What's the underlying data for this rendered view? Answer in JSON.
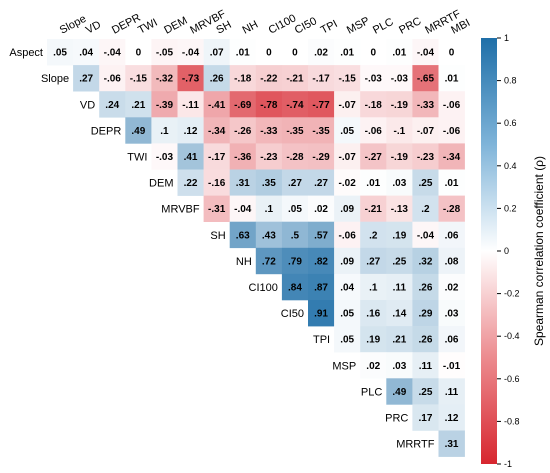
{
  "chart_data": {
    "type": "heatmap",
    "layout": "upper-triangle correlation matrix",
    "variables": [
      "Aspect",
      "Slope",
      "VD",
      "DEPR",
      "TWI",
      "DEM",
      "MRVBF",
      "SH",
      "NH",
      "CI100",
      "CI50",
      "TPI",
      "MSP",
      "PLC",
      "PRC",
      "MRRTF",
      "MBI"
    ],
    "row_labels": [
      "Aspect",
      "Slope",
      "VD",
      "DEPR",
      "TWI",
      "DEM",
      "MRVBF",
      "SH",
      "NH",
      "CI100",
      "CI50",
      "TPI",
      "MSP",
      "PLC",
      "PRC",
      "MRRTF"
    ],
    "column_labels": [
      "Slope",
      "VD",
      "DEPR",
      "TWI",
      "DEM",
      "MRVBF",
      "SH",
      "NH",
      "CI100",
      "CI50",
      "TPI",
      "MSP",
      "PLC",
      "PRC",
      "MRRTF",
      "MBI"
    ],
    "rows": [
      [
        0.05,
        0.04,
        -0.04,
        0,
        -0.05,
        -0.04,
        0.07,
        0.01,
        0,
        0,
        0.02,
        0.01,
        0,
        0.01,
        -0.04,
        0
      ],
      [
        0.27,
        -0.06,
        -0.15,
        -0.32,
        -0.73,
        0.26,
        -0.18,
        -0.22,
        -0.21,
        -0.17,
        -0.15,
        -0.03,
        -0.03,
        -0.65,
        0.01
      ],
      [
        0.24,
        0.21,
        -0.39,
        -0.11,
        -0.41,
        -0.69,
        -0.78,
        -0.74,
        -0.77,
        -0.07,
        -0.18,
        -0.19,
        -0.33,
        -0.06
      ],
      [
        0.49,
        0.1,
        0.12,
        -0.34,
        -0.26,
        -0.33,
        -0.35,
        -0.35,
        0.05,
        -0.06,
        -0.1,
        -0.07,
        -0.06
      ],
      [
        -0.03,
        0.41,
        -0.17,
        -0.36,
        -0.23,
        -0.28,
        -0.29,
        -0.07,
        -0.27,
        -0.19,
        -0.23,
        -0.34
      ],
      [
        0.22,
        -0.16,
        0.31,
        0.35,
        0.27,
        0.27,
        -0.02,
        0.01,
        0.03,
        0.25,
        0.01
      ],
      [
        -0.31,
        -0.04,
        0.1,
        0.05,
        0.02,
        0.09,
        -0.21,
        -0.13,
        0.2,
        -0.28
      ],
      [
        0.63,
        0.43,
        0.5,
        0.57,
        -0.06,
        0.2,
        0.19,
        -0.04,
        0.06
      ],
      [
        0.72,
        0.79,
        0.82,
        0.09,
        0.27,
        0.25,
        0.32,
        0.08
      ],
      [
        0.84,
        0.87,
        0.04,
        0.1,
        0.11,
        0.26,
        0.02
      ],
      [
        0.91,
        0.05,
        0.16,
        0.14,
        0.29,
        0.03
      ],
      [
        0.05,
        0.19,
        0.21,
        0.26,
        0.06
      ],
      [
        0.02,
        0.03,
        0.11,
        -0.01
      ],
      [
        0.49,
        0.25,
        0.11
      ],
      [
        0.17,
        0.12
      ],
      [
        0.31
      ]
    ],
    "value_range": [
      -1,
      1
    ],
    "colorbar": {
      "label": "Spearman correlation coefficient (ρ)",
      "ticks": [
        1,
        0.8,
        0.6,
        0.4,
        0.2,
        0,
        -0.2,
        -0.4,
        -0.6,
        -0.8,
        -1
      ],
      "tick_labels": [
        "1",
        "0.8",
        "0.6",
        "0.4",
        "0.2",
        "0",
        "-0.2",
        "-0.4",
        "-0.6",
        "-0.8",
        "-1"
      ],
      "position": "right"
    },
    "colors": {
      "positive": "#1f6fa8",
      "neutral": "#ffffff",
      "negative": "#d7262f"
    }
  }
}
